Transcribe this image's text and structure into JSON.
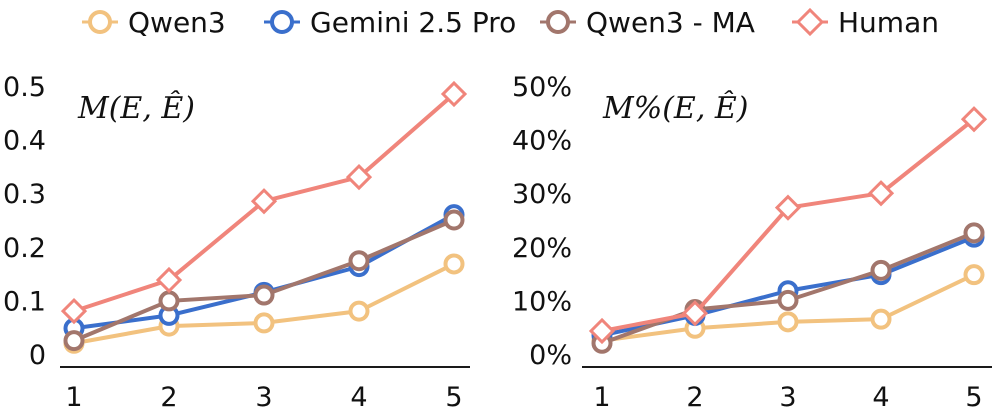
{
  "colors": {
    "qwen3": "#f2c27f",
    "gemini": "#3a6fcc",
    "qwen3_ma": "#a2766c",
    "human": "#f0857b"
  },
  "chart_data": [
    {
      "type": "line",
      "annotation": "M(E, Ê)",
      "x": [
        1,
        2,
        3,
        4,
        5
      ],
      "ylim": [
        0,
        0.5
      ],
      "yticks": [
        "0",
        "0.1",
        "0.2",
        "0.3",
        "0.4",
        "0.5"
      ],
      "xticks": [
        "1",
        "2",
        "3",
        "4",
        "5"
      ],
      "series": [
        {
          "name": "Qwen3",
          "marker": "circle",
          "color_key": "qwen3",
          "values": [
            0.02,
            0.052,
            0.058,
            0.08,
            0.168
          ]
        },
        {
          "name": "Gemini 2.5 Pro",
          "marker": "circle",
          "color_key": "gemini",
          "values": [
            0.048,
            0.072,
            0.115,
            0.163,
            0.26
          ]
        },
        {
          "name": "Qwen3 - MA",
          "marker": "circle",
          "color_key": "qwen3_ma",
          "values": [
            0.025,
            0.099,
            0.11,
            0.174,
            0.25
          ]
        },
        {
          "name": "Human",
          "marker": "diamond",
          "color_key": "human",
          "values": [
            0.08,
            0.138,
            0.285,
            0.33,
            0.485
          ]
        }
      ]
    },
    {
      "type": "line",
      "annotation": "M%(E, Ê)",
      "x": [
        1,
        2,
        3,
        4,
        5
      ],
      "ylim": [
        0,
        50
      ],
      "yticks": [
        "0%",
        "10%",
        "20%",
        "30%",
        "40%",
        "50%"
      ],
      "xticks": [
        "1",
        "2",
        "3",
        "4",
        "5"
      ],
      "series": [
        {
          "name": "Qwen3",
          "marker": "circle",
          "color_key": "qwen3",
          "values": [
            2.5,
            4.8,
            6.0,
            6.5,
            14.8
          ]
        },
        {
          "name": "Gemini 2.5 Pro",
          "marker": "circle",
          "color_key": "gemini",
          "values": [
            3.5,
            7.2,
            11.8,
            14.8,
            21.8
          ]
        },
        {
          "name": "Qwen3 - MA",
          "marker": "circle",
          "color_key": "qwen3_ma",
          "values": [
            2.0,
            8.3,
            10.0,
            15.6,
            22.6
          ]
        },
        {
          "name": "Human",
          "marker": "diamond",
          "color_key": "human",
          "values": [
            4.3,
            7.6,
            27.3,
            30.0,
            43.8
          ]
        }
      ]
    }
  ]
}
